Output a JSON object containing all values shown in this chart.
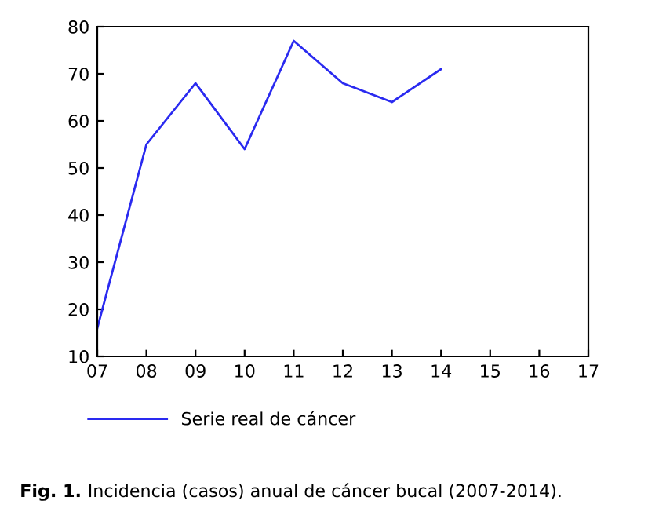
{
  "chart_data": {
    "type": "line",
    "x": [
      7,
      8,
      9,
      10,
      11,
      12,
      13,
      14
    ],
    "series": [
      {
        "name": "Serie real de cáncer",
        "color": "#2a2af0",
        "values": [
          16,
          55,
          68,
          54,
          77,
          68,
          64,
          71
        ]
      }
    ],
    "xlim": [
      7,
      17
    ],
    "xticks": [
      {
        "value": 7,
        "label": "07"
      },
      {
        "value": 8,
        "label": "08"
      },
      {
        "value": 9,
        "label": "09"
      },
      10,
      11,
      12,
      13,
      14,
      15,
      16,
      17
    ],
    "ylim": [
      10,
      80
    ],
    "yticks": [
      10,
      20,
      30,
      40,
      50,
      60,
      70,
      80
    ],
    "grid": false,
    "legend": "bottom",
    "marker": "none",
    "line_style": "solid",
    "annotations": [
      "Fig. 1.",
      "Incidencia (casos) anual de cáncer bucal (2007-2014)."
    ]
  }
}
